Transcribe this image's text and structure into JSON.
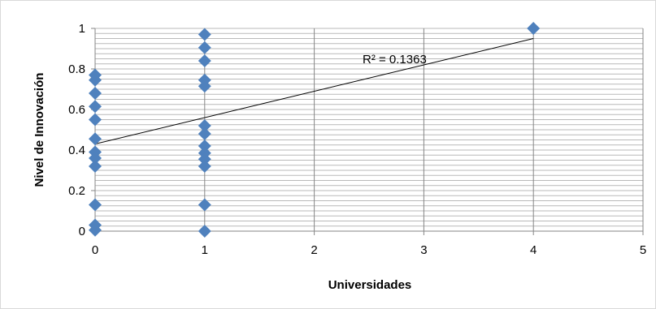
{
  "chart_data": {
    "type": "scatter",
    "title": "",
    "xlabel": "Universidades",
    "ylabel": "Nivel de Innovación",
    "xlim": [
      0,
      5
    ],
    "ylim": [
      0,
      1
    ],
    "x_ticks": [
      "0",
      "1",
      "2",
      "3",
      "4",
      "5"
    ],
    "y_ticks": [
      "0",
      "0.2",
      "0.4",
      "0.6",
      "0.8",
      "1"
    ],
    "grid": {
      "major_x": true,
      "minor_y": true,
      "minor_step": 0.025
    },
    "legend": "none",
    "marker_color": "#4F81BD",
    "series": [
      {
        "points": [
          [
            0,
            0.77
          ],
          [
            0,
            0.745
          ],
          [
            0,
            0.68
          ],
          [
            0,
            0.615
          ],
          [
            0,
            0.55
          ],
          [
            0,
            0.455
          ],
          [
            0,
            0.39
          ],
          [
            0,
            0.36
          ],
          [
            0,
            0.32
          ],
          [
            0,
            0.13
          ],
          [
            0,
            0.03
          ],
          [
            0,
            0.005
          ],
          [
            1,
            0.97
          ],
          [
            1,
            0.905
          ],
          [
            1,
            0.84
          ],
          [
            1,
            0.745
          ],
          [
            1,
            0.715
          ],
          [
            1,
            0.52
          ],
          [
            1,
            0.48
          ],
          [
            1,
            0.42
          ],
          [
            1,
            0.385
          ],
          [
            1,
            0.355
          ],
          [
            1,
            0.32
          ],
          [
            1,
            0.13
          ],
          [
            1,
            0.0
          ],
          [
            4,
            1.0
          ]
        ]
      }
    ],
    "trendline": {
      "type": "linear",
      "x_range": [
        0,
        4
      ],
      "y_start": 0.43,
      "y_end": 0.95,
      "label": "R² = 0.1363",
      "color": "#000000"
    }
  }
}
